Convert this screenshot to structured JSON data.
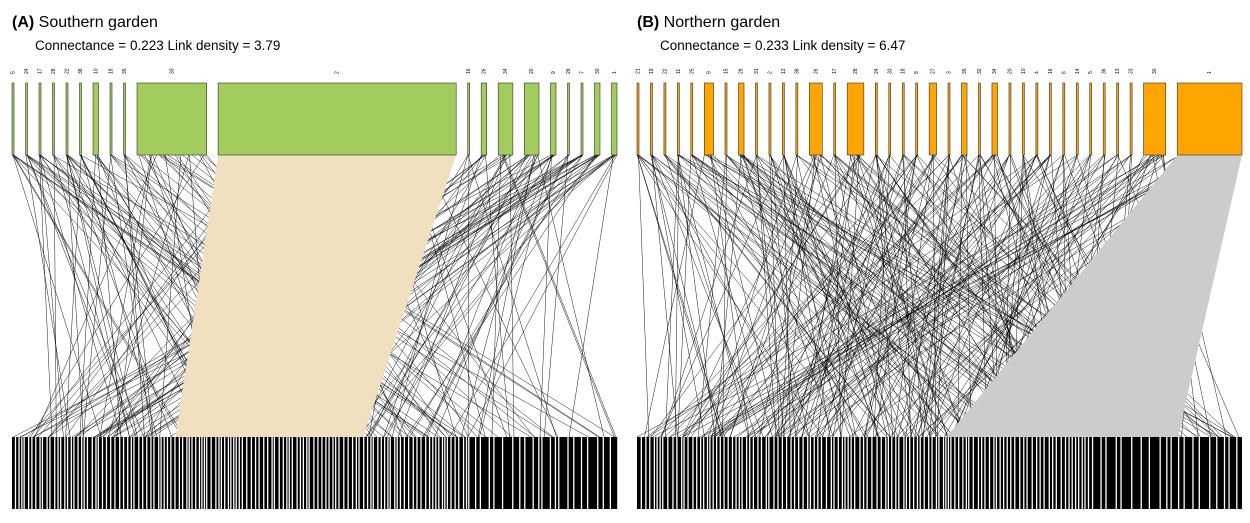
{
  "figure": {
    "panels": [
      {
        "id": "A",
        "letter": "(A)",
        "title": "Southern garden",
        "stats": "Connectance = 0.223 Link density = 3.79"
      },
      {
        "id": "B",
        "letter": "(B)",
        "title": "Northern garden",
        "stats": "Connectance = 0.233 Link density = 6.47"
      }
    ]
  },
  "colors": {
    "upper_a": "#a3cc5e",
    "upper_b": "#ffa500",
    "lower": "#000000",
    "link": "#000000",
    "wedge_a": "#f0e0c0",
    "wedge_b": "#cccccc"
  },
  "chart_data": [
    {
      "type": "bipartite-network",
      "panel": "A",
      "title": "Southern garden",
      "connectance": 0.223,
      "link_density": 3.79,
      "upper_nodes": [
        {
          "label": "5",
          "weight": 1
        },
        {
          "label": "24",
          "weight": 1
        },
        {
          "label": "17",
          "weight": 1
        },
        {
          "label": "28",
          "weight": 1
        },
        {
          "label": "22",
          "weight": 1
        },
        {
          "label": "38",
          "weight": 1
        },
        {
          "label": "10",
          "weight": 3
        },
        {
          "label": "19",
          "weight": 1
        },
        {
          "label": "35",
          "weight": 1
        },
        {
          "label": "33",
          "weight": 38
        },
        {
          "label": "2",
          "weight": 130
        },
        {
          "label": "16",
          "weight": 1
        },
        {
          "label": "26",
          "weight": 3
        },
        {
          "label": "34",
          "weight": 8
        },
        {
          "label": "20",
          "weight": 8
        },
        {
          "label": "9",
          "weight": 3
        },
        {
          "label": "29",
          "weight": 1
        },
        {
          "label": "7",
          "weight": 1
        },
        {
          "label": "30",
          "weight": 3
        },
        {
          "label": "1",
          "weight": 3
        }
      ],
      "lower_node_count": 150
    },
    {
      "type": "bipartite-network",
      "panel": "B",
      "title": "Northern garden",
      "connectance": 0.233,
      "link_density": 6.47,
      "upper_nodes": [
        {
          "label": "21",
          "weight": 1
        },
        {
          "label": "19",
          "weight": 1
        },
        {
          "label": "22",
          "weight": 1
        },
        {
          "label": "11",
          "weight": 1
        },
        {
          "label": "25",
          "weight": 1
        },
        {
          "label": "9",
          "weight": 5
        },
        {
          "label": "15",
          "weight": 1
        },
        {
          "label": "29",
          "weight": 3
        },
        {
          "label": "31",
          "weight": 1
        },
        {
          "label": "2",
          "weight": 1
        },
        {
          "label": "12",
          "weight": 1
        },
        {
          "label": "38",
          "weight": 1
        },
        {
          "label": "26",
          "weight": 7
        },
        {
          "label": "17",
          "weight": 1
        },
        {
          "label": "28",
          "weight": 9
        },
        {
          "label": "24",
          "weight": 1
        },
        {
          "label": "33",
          "weight": 1
        },
        {
          "label": "18",
          "weight": 1
        },
        {
          "label": "8",
          "weight": 1
        },
        {
          "label": "27",
          "weight": 4
        },
        {
          "label": "3",
          "weight": 1
        },
        {
          "label": "35",
          "weight": 3
        },
        {
          "label": "32",
          "weight": 1
        },
        {
          "label": "34",
          "weight": 3
        },
        {
          "label": "20",
          "weight": 1
        },
        {
          "label": "10",
          "weight": 1
        },
        {
          "label": "4",
          "weight": 1
        },
        {
          "label": "16",
          "weight": 1
        },
        {
          "label": "6",
          "weight": 1
        },
        {
          "label": "14",
          "weight": 1
        },
        {
          "label": "5",
          "weight": 1
        },
        {
          "label": "36",
          "weight": 1
        },
        {
          "label": "13",
          "weight": 1
        },
        {
          "label": "23",
          "weight": 1
        },
        {
          "label": "30",
          "weight": 12
        },
        {
          "label": "1",
          "weight": 35
        }
      ],
      "lower_node_count": 140
    }
  ]
}
